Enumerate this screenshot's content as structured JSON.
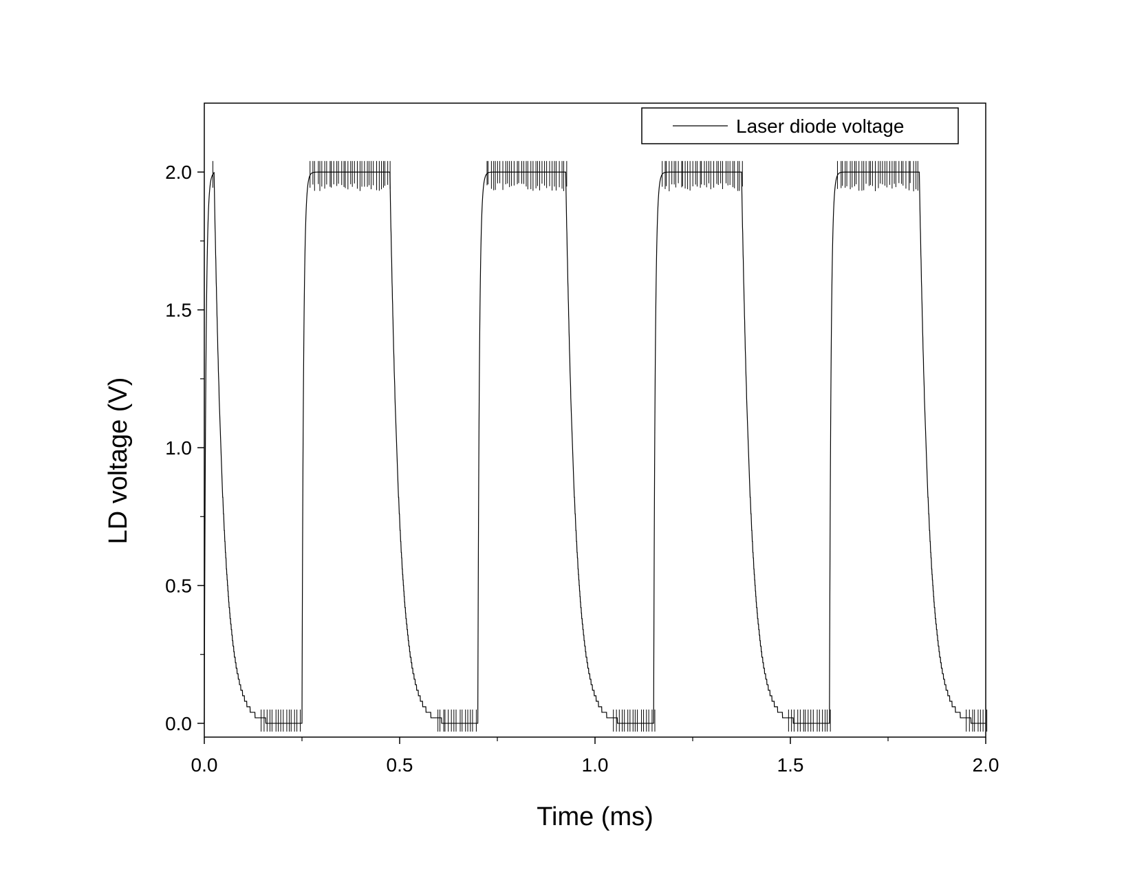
{
  "chart_data": {
    "type": "line",
    "xlabel": "Time (ms)",
    "ylabel": "LD voltage (V)",
    "xlim": [
      0.0,
      2.0
    ],
    "ylim": [
      -0.05,
      2.25
    ],
    "xticks": [
      "0.0",
      "0.5",
      "1.0",
      "1.5",
      "2.0"
    ],
    "yticks": [
      "0.0",
      "0.5",
      "1.0",
      "1.5",
      "2.0"
    ],
    "grid": false,
    "legend_position": "top-right",
    "series": [
      {
        "name": "Laser diode voltage",
        "color": "#000000",
        "pulses": [
          {
            "rise": 0.0,
            "fall": 0.025,
            "next_rise": 0.25
          },
          {
            "rise": 0.25,
            "fall": 0.475,
            "next_rise": 0.7
          },
          {
            "rise": 0.7,
            "fall": 0.925,
            "next_rise": 1.15
          },
          {
            "rise": 1.15,
            "fall": 1.375,
            "next_rise": 1.6
          },
          {
            "rise": 1.6,
            "fall": 1.83,
            "next_rise": 2.0
          }
        ],
        "high_level": 2.0,
        "low_level": 0.0
      }
    ]
  }
}
